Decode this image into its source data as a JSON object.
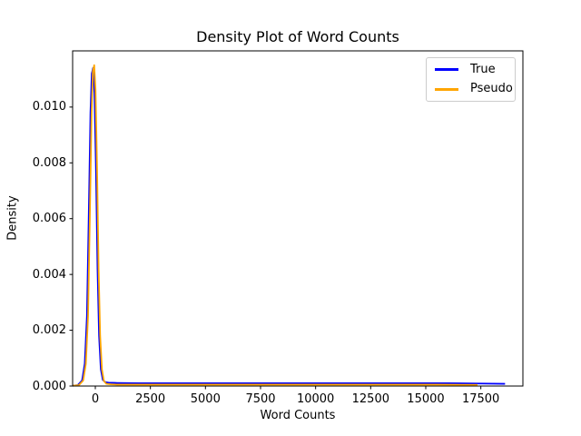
{
  "chart_data": {
    "type": "line",
    "title": "Density Plot of Word Counts",
    "xlabel": "Word Counts",
    "ylabel": "Density",
    "xlim": [
      -1030,
      19410
    ],
    "ylim": [
      0,
      0.012014
    ],
    "xticks": [
      0,
      2500,
      5000,
      7500,
      10000,
      12500,
      15000,
      17500
    ],
    "xtick_labels": [
      "0",
      "2500",
      "5000",
      "7500",
      "10000",
      "12500",
      "15000",
      "17500"
    ],
    "yticks": [
      0.0,
      0.002,
      0.004,
      0.006,
      0.008,
      0.01
    ],
    "ytick_labels": [
      "0.000",
      "0.002",
      "0.004",
      "0.006",
      "0.008",
      "0.010"
    ],
    "grid": false,
    "legend_position": "upper right",
    "colors": {
      "background": "#ffffff",
      "spine": "#000000",
      "text": "#000000",
      "legend_border": "#cccccc"
    },
    "series": [
      {
        "name": "True",
        "color": "#0000ff",
        "points": [
          [
            -1030,
            1e-05
          ],
          [
            -800,
            3e-05
          ],
          [
            -600,
            0.0002
          ],
          [
            -480,
            0.0008
          ],
          [
            -380,
            0.0025
          ],
          [
            -300,
            0.006
          ],
          [
            -220,
            0.0098
          ],
          [
            -160,
            0.0112
          ],
          [
            -100,
            0.0114
          ],
          [
            -40,
            0.0105
          ],
          [
            30,
            0.0078
          ],
          [
            100,
            0.0042
          ],
          [
            170,
            0.0018
          ],
          [
            250,
            0.0006
          ],
          [
            340,
            0.00022
          ],
          [
            450,
            0.00014
          ],
          [
            600,
            0.00012
          ],
          [
            1000,
            0.00011
          ],
          [
            2000,
            0.0001
          ],
          [
            4000,
            0.0001
          ],
          [
            7000,
            0.0001
          ],
          [
            10000,
            0.0001
          ],
          [
            13000,
            0.0001
          ],
          [
            16000,
            0.0001
          ],
          [
            17500,
            9e-05
          ],
          [
            18600,
            8e-05
          ]
        ]
      },
      {
        "name": "Pseudo",
        "color": "#ffa500",
        "points": [
          [
            -1030,
            1e-05
          ],
          [
            -750,
            3e-05
          ],
          [
            -550,
            0.0002
          ],
          [
            -430,
            0.0008
          ],
          [
            -330,
            0.0025
          ],
          [
            -250,
            0.006
          ],
          [
            -170,
            0.0098
          ],
          [
            -110,
            0.0113
          ],
          [
            -50,
            0.0115
          ],
          [
            10,
            0.0106
          ],
          [
            80,
            0.0078
          ],
          [
            150,
            0.0042
          ],
          [
            220,
            0.0018
          ],
          [
            300,
            0.0006
          ],
          [
            390,
            0.00018
          ],
          [
            500,
            8e-05
          ],
          [
            700,
            6e-05
          ],
          [
            1000,
            5e-05
          ],
          [
            2000,
            5e-05
          ],
          [
            4000,
            5e-05
          ],
          [
            7000,
            5e-05
          ],
          [
            10000,
            5e-05
          ],
          [
            13000,
            5e-05
          ],
          [
            15500,
            5e-05
          ],
          [
            17350,
            4e-05
          ]
        ]
      }
    ]
  }
}
